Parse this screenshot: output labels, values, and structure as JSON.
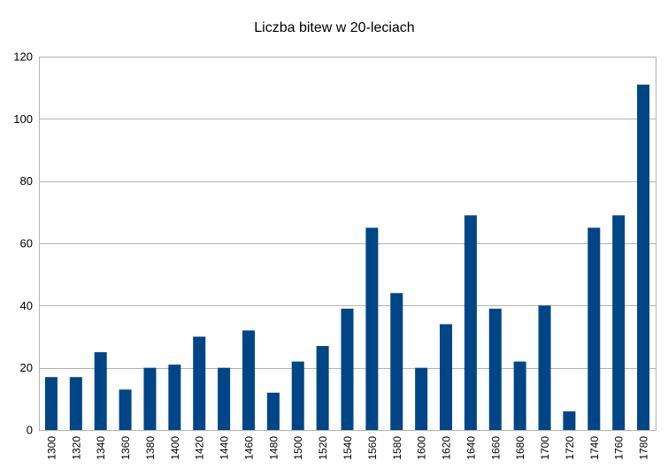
{
  "chart_data": {
    "type": "bar",
    "title": "Liczba bitew w 20-leciach",
    "xlabel": "",
    "ylabel": "",
    "categories": [
      "1300",
      "1320",
      "1340",
      "1360",
      "1380",
      "1400",
      "1420",
      "1440",
      "1460",
      "1480",
      "1500",
      "1520",
      "1540",
      "1560",
      "1580",
      "1600",
      "1620",
      "1640",
      "1660",
      "1680",
      "1700",
      "1720",
      "1740",
      "1760",
      "1780"
    ],
    "values": [
      17,
      17,
      25,
      13,
      20,
      21,
      30,
      20,
      32,
      12,
      22,
      27,
      39,
      65,
      44,
      20,
      34,
      69,
      39,
      22,
      40,
      6,
      65,
      69,
      111
    ],
    "ylim": [
      0,
      120
    ],
    "yticks": [
      0,
      20,
      40,
      60,
      80,
      100,
      120
    ],
    "grid": true,
    "legend": "none",
    "bar_color": "#004586",
    "grid_color": "#b3b3b3"
  }
}
